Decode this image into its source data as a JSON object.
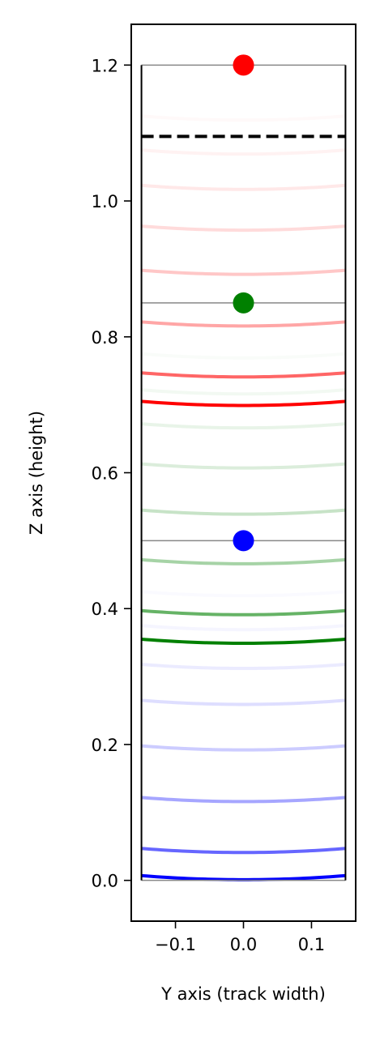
{
  "chart_data": {
    "type": "line",
    "title": "",
    "xlabel": "Y axis (track width)",
    "ylabel": "Z axis (height)",
    "xlim": [
      -0.165,
      0.165
    ],
    "ylim": [
      -0.06,
      1.26
    ],
    "xticks": [
      -0.1,
      0.0,
      0.1
    ],
    "xtick_labels": [
      "−0.1",
      "0.0",
      "0.1"
    ],
    "yticks": [
      0.0,
      0.2,
      0.4,
      0.6,
      0.8,
      1.0,
      1.2
    ],
    "ytick_labels": [
      "0.0",
      "0.2",
      "0.4",
      "0.6",
      "0.8",
      "1.0",
      "1.2"
    ],
    "grid": false,
    "legend": "none",
    "track": {
      "y_min": -0.15,
      "y_max": 0.15,
      "z_min": 0.0,
      "z_max": 1.2,
      "color": "#000000"
    },
    "reference_lines": [
      {
        "z": 0.0,
        "color": "#888888"
      },
      {
        "z": 0.5,
        "color": "#888888"
      },
      {
        "z": 0.85,
        "color": "#888888"
      },
      {
        "z": 1.2,
        "color": "#888888"
      }
    ],
    "threshold_line": {
      "z": 1.095,
      "color": "#000000",
      "style": "dashed"
    },
    "points": [
      {
        "y": 0.0,
        "z": 0.5,
        "color": "#0000ff"
      },
      {
        "y": 0.0,
        "z": 0.85,
        "color": "#008000"
      },
      {
        "y": 0.0,
        "z": 1.2,
        "color": "#ff0000"
      }
    ],
    "series": [
      {
        "color": "#0000ff",
        "sag": 0.006,
        "curves": [
          {
            "z": 0.007,
            "alpha": 1.0
          },
          {
            "z": 0.047,
            "alpha": 0.6
          },
          {
            "z": 0.122,
            "alpha": 0.35
          },
          {
            "z": 0.198,
            "alpha": 0.2
          },
          {
            "z": 0.265,
            "alpha": 0.13
          },
          {
            "z": 0.318,
            "alpha": 0.08
          },
          {
            "z": 0.375,
            "alpha": 0.04
          },
          {
            "z": 0.425,
            "alpha": 0.02
          }
        ]
      },
      {
        "color": "#008000",
        "sag": 0.006,
        "curves": [
          {
            "z": 0.355,
            "alpha": 1.0
          },
          {
            "z": 0.397,
            "alpha": 0.6
          },
          {
            "z": 0.472,
            "alpha": 0.35
          },
          {
            "z": 0.545,
            "alpha": 0.22
          },
          {
            "z": 0.613,
            "alpha": 0.14
          },
          {
            "z": 0.672,
            "alpha": 0.09
          },
          {
            "z": 0.722,
            "alpha": 0.05
          },
          {
            "z": 0.775,
            "alpha": 0.025
          }
        ]
      },
      {
        "color": "#ff0000",
        "sag": 0.006,
        "curves": [
          {
            "z": 0.705,
            "alpha": 1.0
          },
          {
            "z": 0.747,
            "alpha": 0.6
          },
          {
            "z": 0.822,
            "alpha": 0.35
          },
          {
            "z": 0.898,
            "alpha": 0.22
          },
          {
            "z": 0.963,
            "alpha": 0.14
          },
          {
            "z": 1.023,
            "alpha": 0.09
          },
          {
            "z": 1.075,
            "alpha": 0.05
          },
          {
            "z": 1.125,
            "alpha": 0.025
          }
        ]
      }
    ]
  }
}
